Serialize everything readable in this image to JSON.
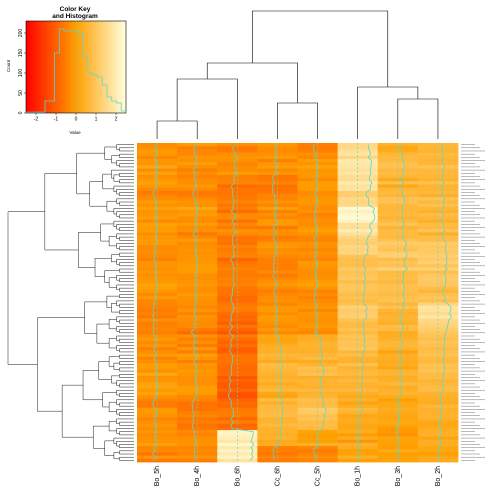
{
  "chart_data": {
    "type": "heatmap",
    "columns": [
      "Bo_5h",
      "Bo_4h",
      "Bo_6h",
      "Cc_6h",
      "Cc_5h",
      "Bo_1h",
      "Bo_3h",
      "Bo_2h"
    ],
    "color_key": {
      "title": "Color Key",
      "subtitle": "and Histogram",
      "xlabel": "Value",
      "ylabel": "Count",
      "x_ticks": [
        "-2",
        "-1",
        "0",
        "1",
        "2"
      ],
      "y_ticks": [
        "0",
        "50",
        "100",
        "150",
        "200"
      ],
      "xlim": [
        -2.5,
        2.5
      ],
      "ylim": [
        0,
        230
      ],
      "histogram": [
        2,
        2,
        2,
        2,
        30,
        30,
        150,
        210,
        205,
        205,
        205,
        200,
        140,
        100,
        95,
        90,
        70,
        40,
        30,
        25,
        5
      ]
    },
    "colors": {
      "low": "#ff0000",
      "mid": "#ff9f00",
      "high": "#ffffe0",
      "trace": "#59d9c8",
      "dendrogram": "#000000"
    },
    "scale": "row z-score",
    "n_rows": 100,
    "column_profiles": [
      [
        -0.2,
        -0.1,
        -0.2,
        -0.3,
        -0.2,
        -0.1,
        -0.3,
        -0.2,
        -0.1,
        -0.2,
        -0.5,
        -0.4,
        -0.3,
        -0.2,
        -0.1,
        0.0,
        -0.3,
        -0.2,
        -0.1,
        -0.4
      ],
      [
        -0.3,
        -0.2,
        -0.2,
        -0.3,
        -0.1,
        -0.3,
        -0.2,
        -0.1,
        -0.2,
        -0.3,
        -0.4,
        -0.5,
        -0.3,
        -0.2,
        -0.1,
        -0.2,
        -0.6,
        -0.4,
        -0.3,
        -0.5
      ],
      [
        -0.4,
        -0.3,
        -0.5,
        -0.6,
        -0.5,
        -0.4,
        -0.6,
        -0.7,
        -0.6,
        -0.7,
        -0.8,
        -0.9,
        -0.8,
        -0.7,
        -0.9,
        -1.0,
        -0.8,
        -0.7,
        2.2,
        2.0
      ],
      [
        -0.2,
        -0.3,
        -0.4,
        -0.3,
        -0.2,
        -0.3,
        -0.4,
        -0.5,
        -0.4,
        -0.3,
        -0.3,
        -0.2,
        0.3,
        0.5,
        0.6,
        0.4,
        0.8,
        0.7,
        0.3,
        -0.6
      ],
      [
        -0.3,
        -0.2,
        -0.1,
        -0.2,
        -0.3,
        -0.2,
        -0.3,
        -0.2,
        -0.1,
        -0.3,
        -0.2,
        -0.1,
        0.4,
        0.6,
        0.7,
        0.5,
        0.9,
        0.8,
        0.2,
        -0.5
      ],
      [
        1.6,
        1.8,
        1.9,
        1.5,
        2.3,
        1.7,
        1.2,
        1.1,
        0.9,
        1.0,
        1.1,
        0.9,
        1.0,
        0.8,
        0.6,
        0.5,
        0.4,
        0.3,
        0.2,
        0.1
      ],
      [
        0.5,
        0.6,
        0.5,
        0.7,
        0.6,
        0.8,
        1.0,
        1.1,
        0.9,
        0.8,
        0.7,
        0.6,
        0.5,
        0.4,
        0.3,
        0.5,
        0.2,
        0.1,
        0.0,
        0.1
      ],
      [
        0.6,
        0.7,
        0.8,
        0.7,
        0.6,
        0.7,
        0.9,
        1.2,
        1.0,
        0.9,
        1.6,
        1.3,
        0.9,
        0.8,
        0.7,
        0.6,
        0.5,
        0.4,
        0.3,
        0.2
      ]
    ]
  }
}
